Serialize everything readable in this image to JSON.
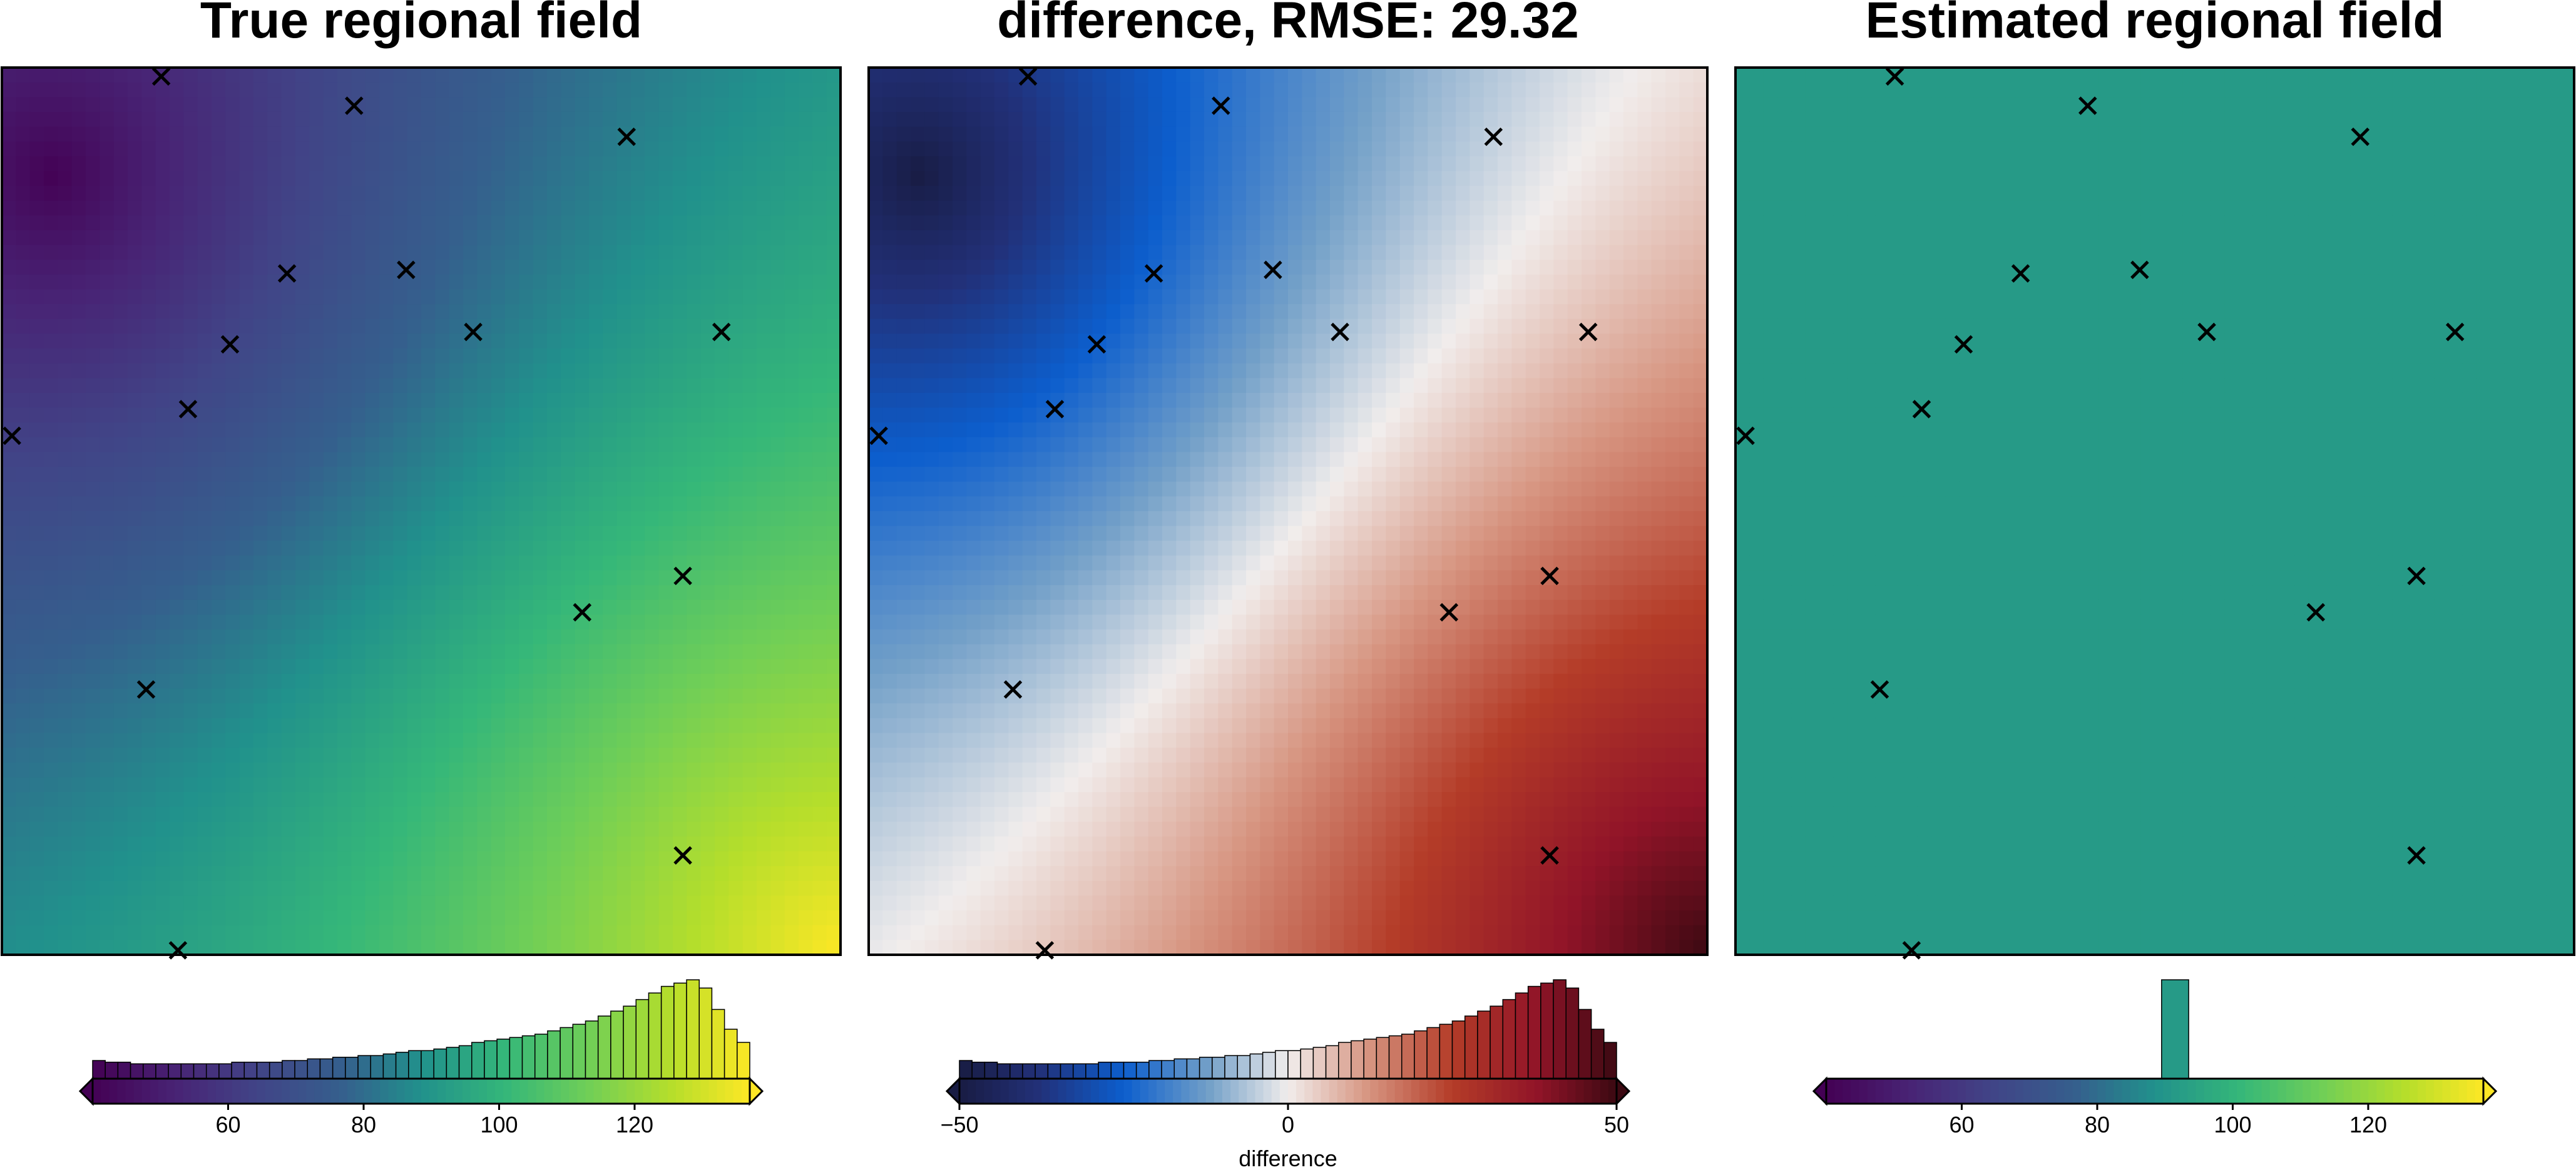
{
  "chart_data": [
    {
      "type": "heatmap",
      "title": "True regional field",
      "colormap": "viridis",
      "value_range": [
        40,
        137
      ],
      "field_model": {
        "kind": "true",
        "low_center": [
          0.06,
          0.12
        ],
        "high_center": [
          1.0,
          1.0
        ]
      },
      "markers": [
        [
          0.19,
          0.01
        ],
        [
          0.42,
          0.043
        ],
        [
          0.745,
          0.078
        ],
        [
          0.34,
          0.232
        ],
        [
          0.482,
          0.228
        ],
        [
          0.272,
          0.312
        ],
        [
          0.562,
          0.298
        ],
        [
          0.858,
          0.298
        ],
        [
          0.222,
          0.385
        ],
        [
          0.012,
          0.415
        ],
        [
          0.812,
          0.573
        ],
        [
          0.692,
          0.614
        ],
        [
          0.172,
          0.701
        ],
        [
          0.812,
          0.888
        ],
        [
          0.21,
          0.995
        ]
      ],
      "colorbar": {
        "ticks": [
          60,
          80,
          100,
          120
        ],
        "tick_labels": [
          "60",
          "80",
          "100",
          "120"
        ],
        "label": "",
        "range": [
          40,
          137
        ]
      },
      "histogram": {
        "bin_edges_range": [
          40,
          137
        ],
        "counts": [
          11,
          10,
          10,
          9,
          9,
          9,
          9,
          9,
          9,
          9,
          9,
          10,
          10,
          10,
          10,
          11,
          11,
          12,
          12,
          13,
          13,
          14,
          14,
          15,
          16,
          17,
          17,
          18,
          19,
          20,
          22,
          23,
          24,
          25,
          26,
          27,
          29,
          31,
          33,
          35,
          38,
          41,
          44,
          48,
          52,
          56,
          58,
          60,
          55,
          42,
          30,
          22
        ]
      }
    },
    {
      "type": "heatmap",
      "title": "difference, RMSE: 29.32",
      "colormap": "balance",
      "value_range": [
        -50,
        50
      ],
      "field_model": {
        "kind": "difference",
        "low_center": [
          0.06,
          0.12
        ],
        "high_center": [
          1.0,
          1.0
        ]
      },
      "markers": [
        [
          0.19,
          0.01
        ],
        [
          0.42,
          0.043
        ],
        [
          0.745,
          0.078
        ],
        [
          0.34,
          0.232
        ],
        [
          0.482,
          0.228
        ],
        [
          0.272,
          0.312
        ],
        [
          0.562,
          0.298
        ],
        [
          0.858,
          0.298
        ],
        [
          0.222,
          0.385
        ],
        [
          0.012,
          0.415
        ],
        [
          0.812,
          0.573
        ],
        [
          0.692,
          0.614
        ],
        [
          0.172,
          0.701
        ],
        [
          0.812,
          0.888
        ],
        [
          0.21,
          0.995
        ]
      ],
      "colorbar": {
        "ticks": [
          -50,
          0,
          50
        ],
        "tick_labels": [
          "−50",
          "0",
          "50"
        ],
        "label": "difference",
        "range": [
          -50,
          50
        ]
      },
      "histogram": {
        "bin_edges_range": [
          -50,
          50
        ],
        "counts": [
          11,
          10,
          10,
          9,
          9,
          9,
          9,
          9,
          9,
          9,
          9,
          10,
          10,
          10,
          10,
          11,
          11,
          12,
          12,
          13,
          13,
          14,
          14,
          15,
          16,
          17,
          17,
          18,
          19,
          20,
          22,
          23,
          24,
          25,
          26,
          27,
          29,
          31,
          33,
          35,
          38,
          41,
          44,
          48,
          52,
          56,
          58,
          60,
          55,
          42,
          30,
          22
        ]
      }
    },
    {
      "type": "heatmap",
      "title": "Estimated regional field",
      "colormap": "viridis",
      "value_range": [
        40,
        137
      ],
      "constant_value": 91.5,
      "markers": [
        [
          0.19,
          0.01
        ],
        [
          0.42,
          0.043
        ],
        [
          0.745,
          0.078
        ],
        [
          0.34,
          0.232
        ],
        [
          0.482,
          0.228
        ],
        [
          0.272,
          0.312
        ],
        [
          0.562,
          0.298
        ],
        [
          0.858,
          0.298
        ],
        [
          0.222,
          0.385
        ],
        [
          0.012,
          0.415
        ],
        [
          0.812,
          0.573
        ],
        [
          0.692,
          0.614
        ],
        [
          0.172,
          0.701
        ],
        [
          0.812,
          0.888
        ],
        [
          0.21,
          0.995
        ]
      ],
      "colorbar": {
        "ticks": [
          60,
          80,
          100,
          120
        ],
        "tick_labels": [
          "60",
          "80",
          "100",
          "120"
        ],
        "label": "",
        "range": [
          40,
          137
        ]
      },
      "histogram": {
        "bin_edges_range": [
          89.5,
          93.5
        ],
        "counts": [
          60
        ]
      }
    }
  ]
}
